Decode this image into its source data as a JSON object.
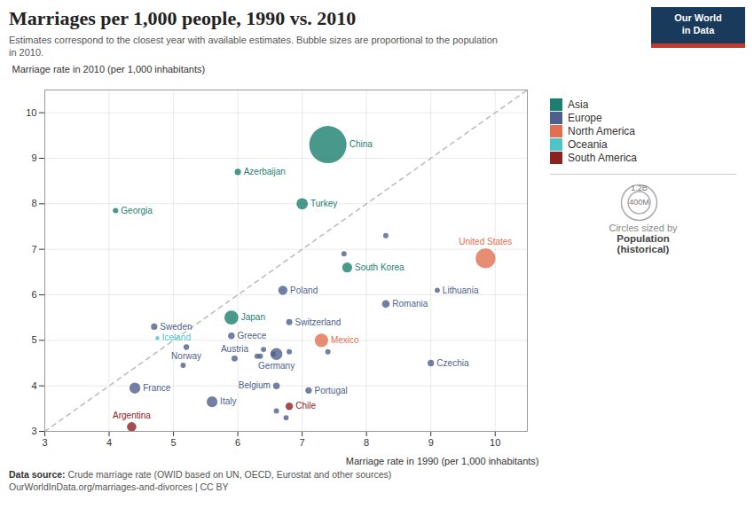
{
  "chart_data": {
    "type": "scatter",
    "title": "Marriages per 1,000 people, 1990 vs. 2010",
    "subtitle": "Estimates correspond to the closest year with available estimates. Bubble sizes are proportional to the population\nin 2010.",
    "xlabel": "Marriage rate in 1990 (per 1,000 inhabitants)",
    "ylabel": "Marriage rate in 2010 (per 1,000 inhabitants)",
    "source_label": "Data source:",
    "source": "Crude marriage rate (OWID based on UN, OECD, Eurostat and other sources)\nOurWorldInData.org/marriages-and-divorces | CC BY",
    "logo": [
      "Our World",
      "in Data"
    ],
    "logo_color": "#1a3a5c",
    "logo_accent": "#c0392b",
    "xlim": [
      3,
      10.5
    ],
    "ylim": [
      3,
      10.5
    ],
    "xticks": [
      3,
      4,
      5,
      6,
      7,
      8,
      9,
      10
    ],
    "yticks": [
      3,
      4,
      5,
      6,
      7,
      8,
      9,
      10
    ],
    "grid": true,
    "legend": "right",
    "series": [
      {
        "name": "Asia",
        "color": "#1a7f6e"
      },
      {
        "name": "Europe",
        "color": "#4d5f8c"
      },
      {
        "name": "North America",
        "color": "#e07050"
      },
      {
        "name": "Oceania",
        "color": "#4ec4c8"
      },
      {
        "name": "South America",
        "color": "#8b2222"
      }
    ],
    "points": [
      {
        "x": 8.3,
        "y": 7.3,
        "series": "Europe",
        "size": 3500000
      },
      {
        "x": 6.3,
        "y": 4.65,
        "series": "Europe",
        "size": 3500000
      },
      {
        "x": 6.35,
        "y": 4.65,
        "series": "Europe",
        "size": 3500000
      },
      {
        "x": 6.55,
        "y": 4.7,
        "series": "Europe",
        "size": 3500000
      },
      {
        "x": 6.4,
        "y": 4.8,
        "series": "Europe",
        "size": 3500000
      },
      {
        "x": 6.6,
        "y": 3.45,
        "series": "Europe",
        "size": 3500000
      },
      {
        "x": 6.8,
        "y": 4.75,
        "series": "Europe",
        "size": 3500000
      },
      {
        "x": 5.15,
        "y": 4.45,
        "series": "Europe",
        "size": 3500000
      },
      {
        "x": 6.75,
        "y": 3.3,
        "series": "Europe",
        "size": 3500000
      },
      {
        "x": 7.4,
        "y": 4.75,
        "series": "Europe",
        "size": 3500000
      },
      {
        "x": 7.65,
        "y": 6.9,
        "series": "Europe",
        "size": 3500000
      },
      {
        "label": "China",
        "x": 7.4,
        "y": 9.3,
        "series": "Asia",
        "size": 1340000000
      },
      {
        "label": "Turkey",
        "x": 7.0,
        "y": 8.0,
        "series": "Asia",
        "size": 72000000
      },
      {
        "label": "Azerbaijan",
        "x": 6.0,
        "y": 8.7,
        "series": "Asia",
        "size": 9000000
      },
      {
        "label": "Japan",
        "x": 5.9,
        "y": 5.5,
        "series": "Asia",
        "size": 128000000
      },
      {
        "label": "South Korea",
        "x": 7.7,
        "y": 6.6,
        "series": "Asia",
        "size": 48000000
      },
      {
        "label": "Georgia",
        "x": 4.1,
        "y": 7.85,
        "series": "Asia",
        "size": 4000000
      },
      {
        "label": "United States",
        "x": 9.85,
        "y": 6.8,
        "series": "North America",
        "size": 310000000
      },
      {
        "label": "Mexico",
        "x": 7.3,
        "y": 5.0,
        "series": "North America",
        "size": 114000000
      },
      {
        "label": "Argentina",
        "x": 4.35,
        "y": 3.1,
        "series": "South America",
        "size": 40000000
      },
      {
        "label": "Sweden",
        "x": 4.7,
        "y": 5.3,
        "series": "Europe",
        "size": 9000000
      },
      {
        "label": "Iceland",
        "x": 4.75,
        "y": 5.05,
        "series": "Oceania",
        "size": 320000
      },
      {
        "label": "Norway",
        "x": 5.2,
        "y": 4.85,
        "series": "Europe",
        "size": 5000000
      },
      {
        "label": "France",
        "x": 4.4,
        "y": 3.95,
        "series": "Europe",
        "size": 65000000
      },
      {
        "label": "Greece",
        "x": 5.9,
        "y": 5.1,
        "series": "Europe",
        "size": 11000000
      },
      {
        "label": "Austria",
        "x": 5.95,
        "y": 4.6,
        "series": "Europe",
        "size": 8000000
      },
      {
        "label": "Switzerland",
        "x": 6.8,
        "y": 5.4,
        "series": "Europe",
        "size": 8000000
      },
      {
        "label": "Poland",
        "x": 6.7,
        "y": 6.1,
        "series": "Europe",
        "size": 38000000
      },
      {
        "label": "Germany",
        "x": 6.6,
        "y": 4.7,
        "series": "Europe",
        "size": 82000000
      },
      {
        "label": "Belgium",
        "x": 6.6,
        "y": 4.0,
        "series": "Europe",
        "size": 11000000
      },
      {
        "label": "Italy",
        "x": 5.6,
        "y": 3.65,
        "series": "Europe",
        "size": 60000000
      },
      {
        "label": "Portugal",
        "x": 7.1,
        "y": 3.9,
        "series": "Europe",
        "size": 10000000
      },
      {
        "label": "Chile",
        "x": 6.8,
        "y": 3.55,
        "series": "South America",
        "size": 17000000
      },
      {
        "label": "Romania",
        "x": 8.3,
        "y": 5.8,
        "series": "Europe",
        "size": 21000000
      },
      {
        "label": "Lithuania",
        "x": 9.1,
        "y": 6.1,
        "series": "Europe",
        "size": 3000000
      },
      {
        "label": "Czechia",
        "x": 9.0,
        "y": 4.5,
        "series": "Europe",
        "size": 10000000
      }
    ],
    "size_legend": {
      "title": [
        "Circles sized by",
        "Population",
        "(historical)"
      ],
      "values": [
        {
          "value": 1200000000,
          "label": "1.2B"
        },
        {
          "value": 400000000,
          "label": "400M"
        }
      ]
    }
  }
}
